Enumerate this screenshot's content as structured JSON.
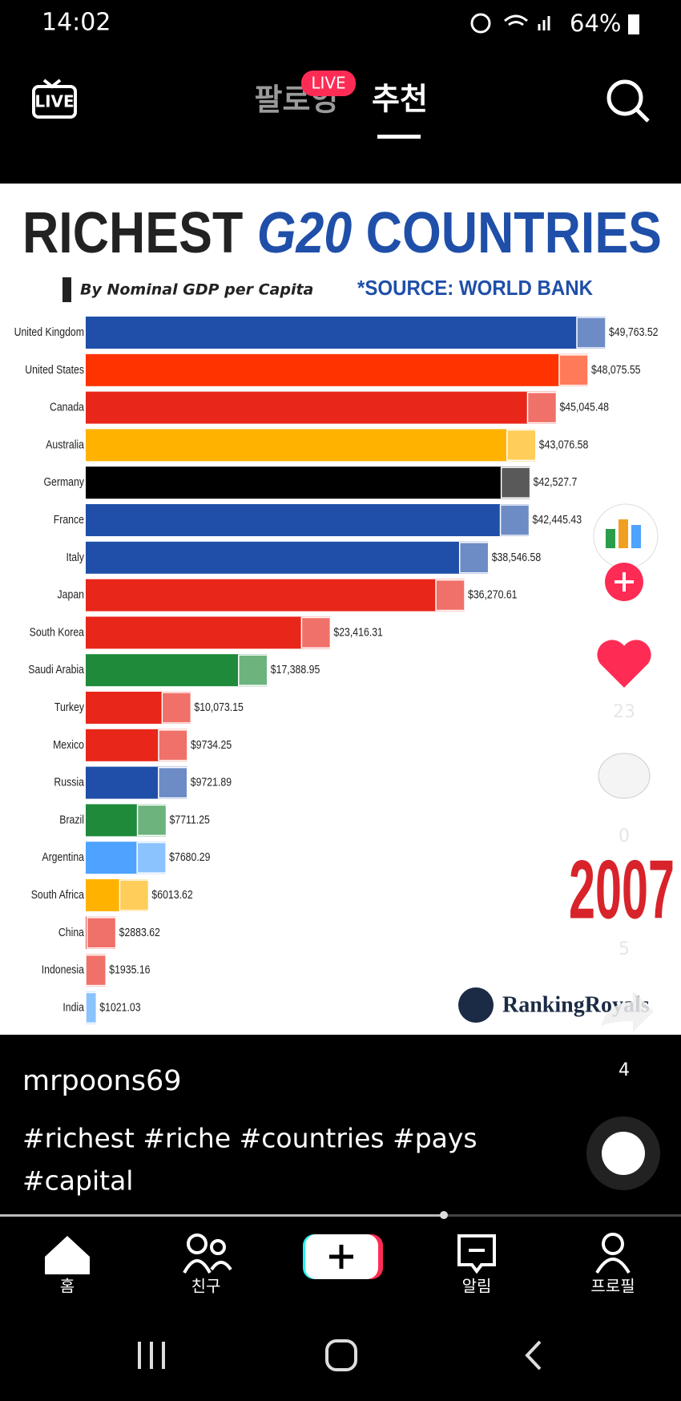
{
  "status_bar": {
    "time": "14:02",
    "battery": "64%"
  },
  "top_nav": {
    "live_icon": "LIVE",
    "tabs": [
      "팔로잉",
      "추천"
    ],
    "live_badge": "LIVE"
  },
  "chart_data": {
    "type": "bar",
    "orientation": "horizontal",
    "title": [
      "RICHEST",
      "G20",
      "COUNTRIES"
    ],
    "subtitle": "By Nominal GDP per Capita",
    "source": "*SOURCE: WORLD BANK",
    "categories": [
      "United Kingdom",
      "United States",
      "Canada",
      "Australia",
      "Germany",
      "France",
      "Italy",
      "Japan",
      "South Korea",
      "Saudi Arabia",
      "Turkey",
      "Mexico",
      "Russia",
      "Brazil",
      "Argentina",
      "South Africa",
      "China",
      "Indonesia",
      "India"
    ],
    "values": [
      49763.52,
      48075.55,
      45045.48,
      43076.58,
      42527.7,
      42445.43,
      38546.58,
      36270.61,
      23416.31,
      17388.95,
      10073.15,
      9734.25,
      9721.89,
      7711.25,
      7680.29,
      6013.62,
      2883.62,
      1935.16,
      1021.03
    ],
    "value_labels": [
      "$49,763.52",
      "$48,075.55",
      "$45,045.48",
      "$43,076.58",
      "$42,527.7",
      "$42,445.43",
      "$38,546.58",
      "$36,270.61",
      "$23,416.31",
      "$17,388.95",
      "$10,073.15",
      "$9734.25",
      "$9721.89",
      "$7711.25",
      "$7680.29",
      "$6013.62",
      "$2883.62",
      "$1935.16",
      "$1021.03"
    ],
    "colors": [
      "#1f4fa8",
      "#ff3300",
      "#e8261a",
      "#ffb300",
      "#000000",
      "#1f4fa8",
      "#1f4fa8",
      "#e8261a",
      "#e8261a",
      "#1e8a3a",
      "#e8261a",
      "#e8261a",
      "#1f4fa8",
      "#1e8a3a",
      "#4da3ff",
      "#ffb300",
      "#e8261a",
      "#e8261a",
      "#4da3ff"
    ],
    "annotation": "2007",
    "watermark": "RankingRoyals"
  },
  "side_actions": {
    "likes": 23,
    "comments": 0,
    "saves": 5,
    "shares": 4
  },
  "caption": {
    "username": "mrpoons69",
    "hashtags": [
      "#richest #riche #countries #pays",
      "#capital"
    ]
  },
  "bottom_nav": {
    "items": [
      "홈",
      "친구",
      "알림",
      "프로필"
    ]
  }
}
